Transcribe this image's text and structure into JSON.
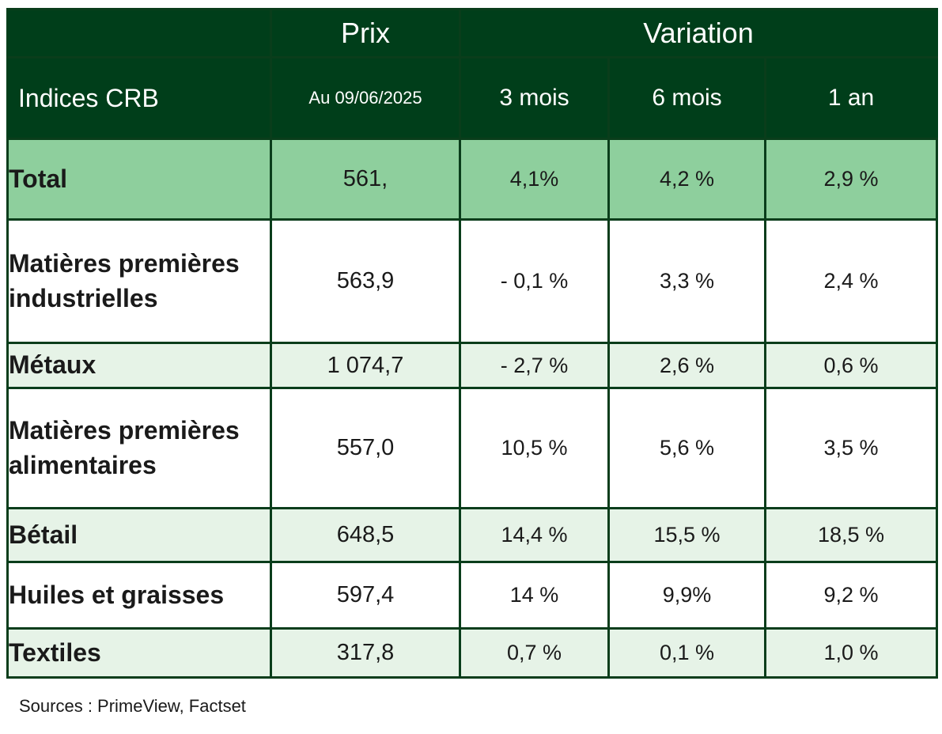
{
  "header": {
    "prix": "Prix",
    "variation": "Variation",
    "indices": "Indices CRB",
    "date": "Au 09/06/2025",
    "col_3m": "3 mois",
    "col_6m": "6 mois",
    "col_1y": "1 an"
  },
  "rows": [
    {
      "label": "Total",
      "prix": "561,",
      "m3": "4,1%",
      "m6": "4,2 %",
      "y1": "2,9 %"
    },
    {
      "label": "Matières premières industrielles",
      "prix": "563,9",
      "m3": "- 0,1 %",
      "m6": "3,3 %",
      "y1": "2,4 %"
    },
    {
      "label": "Métaux",
      "prix": "1 074,7",
      "m3": "- 2,7 %",
      "m6": "2,6 %",
      "y1": "0,6 %"
    },
    {
      "label": "Matières premières alimentaires",
      "prix": "557,0",
      "m3": "10,5 %",
      "m6": "5,6 %",
      "y1": "3,5 %"
    },
    {
      "label": "Bétail",
      "prix": "648,5",
      "m3": "14,4 %",
      "m6": "15,5 %",
      "y1": "18,5 %"
    },
    {
      "label": "Huiles et graisses",
      "prix": "597,4",
      "m3": "14 %",
      "m6": "9,9%",
      "y1": "9,2 %"
    },
    {
      "label": "Textiles",
      "prix": "317,8",
      "m3": "0,7 %",
      "m6": "0,1 %",
      "y1": "1,0 %"
    }
  ],
  "sources": "Sources : PrimeView, Factset",
  "colors": {
    "header_bg": "#003e1a",
    "total_bg": "#8ecf9d",
    "light_row_bg": "#e6f3e7"
  }
}
